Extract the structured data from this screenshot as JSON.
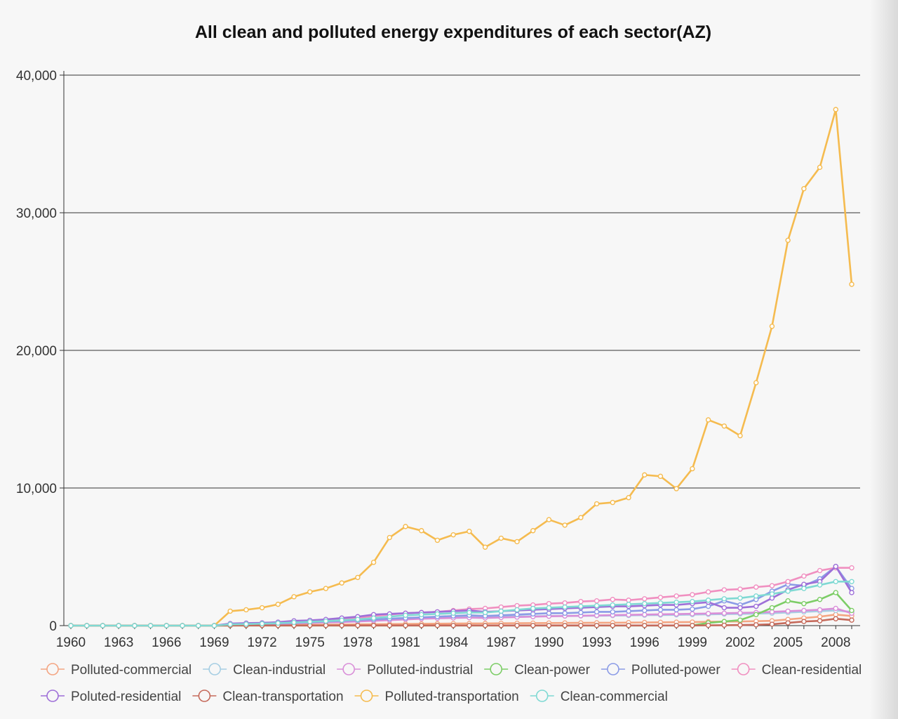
{
  "chart_data": {
    "type": "line",
    "title": "All clean and polluted energy expenditures of each sector(AZ)",
    "xlabel": "",
    "ylabel": "",
    "x": [
      1960,
      1961,
      1962,
      1963,
      1964,
      1965,
      1966,
      1967,
      1968,
      1969,
      1970,
      1971,
      1972,
      1973,
      1974,
      1975,
      1976,
      1977,
      1978,
      1979,
      1980,
      1981,
      1982,
      1983,
      1984,
      1985,
      1986,
      1987,
      1988,
      1989,
      1990,
      1991,
      1992,
      1993,
      1994,
      1995,
      1996,
      1997,
      1998,
      1999,
      2000,
      2001,
      2002,
      2003,
      2004,
      2005,
      2006,
      2007,
      2008,
      2009
    ],
    "x_tick_labels": [
      "1960",
      "1963",
      "1966",
      "1969",
      "1972",
      "1975",
      "1978",
      "1981",
      "1984",
      "1987",
      "1990",
      "1993",
      "1996",
      "1999",
      "2002",
      "2005",
      "2008"
    ],
    "ylim": [
      0,
      40000
    ],
    "y_ticks": [
      0,
      10000,
      20000,
      30000,
      40000
    ],
    "y_tick_labels": [
      "0",
      "10,000",
      "20,000",
      "30,000",
      "40,000"
    ],
    "grid": true,
    "legend_position": "bottom",
    "series": [
      {
        "name": "Polluted-commercial",
        "color": "#f4a582",
        "values": [
          0,
          0,
          0,
          0,
          0,
          0,
          0,
          0,
          0,
          0,
          30,
          35,
          40,
          45,
          55,
          60,
          70,
          80,
          90,
          100,
          110,
          120,
          130,
          140,
          150,
          155,
          160,
          170,
          175,
          180,
          190,
          195,
          200,
          205,
          210,
          220,
          230,
          240,
          250,
          260,
          280,
          290,
          300,
          320,
          350,
          450,
          550,
          650,
          800,
          700
        ]
      },
      {
        "name": "Clean-industrial",
        "color": "#a6cee3",
        "values": [
          0,
          0,
          0,
          0,
          0,
          0,
          0,
          0,
          0,
          0,
          80,
          100,
          120,
          150,
          200,
          250,
          300,
          350,
          400,
          450,
          500,
          550,
          580,
          600,
          620,
          640,
          620,
          640,
          660,
          680,
          700,
          700,
          710,
          720,
          730,
          740,
          760,
          770,
          780,
          800,
          820,
          840,
          850,
          870,
          900,
          950,
          1000,
          1050,
          1100,
          1000
        ]
      },
      {
        "name": "Polluted-industrial",
        "color": "#d98ed8",
        "values": [
          0,
          0,
          0,
          0,
          0,
          0,
          0,
          0,
          0,
          0,
          60,
          80,
          100,
          130,
          170,
          200,
          230,
          260,
          300,
          350,
          400,
          450,
          500,
          530,
          560,
          580,
          560,
          590,
          620,
          650,
          680,
          700,
          720,
          740,
          760,
          780,
          800,
          820,
          840,
          860,
          880,
          900,
          920,
          950,
          1000,
          1050,
          1100,
          1150,
          1250,
          900
        ]
      },
      {
        "name": "Clean-power",
        "color": "#7ccd66",
        "values": [
          0,
          0,
          0,
          0,
          0,
          0,
          0,
          0,
          0,
          0,
          10,
          10,
          10,
          10,
          10,
          10,
          10,
          10,
          10,
          10,
          10,
          10,
          10,
          10,
          10,
          10,
          10,
          10,
          10,
          10,
          10,
          10,
          10,
          10,
          10,
          10,
          10,
          10,
          10,
          10,
          200,
          300,
          400,
          800,
          1300,
          1800,
          1600,
          1900,
          2400,
          1100
        ]
      },
      {
        "name": "Polluted-power",
        "color": "#8b9be6",
        "values": [
          0,
          0,
          0,
          0,
          0,
          0,
          0,
          0,
          0,
          0,
          100,
          120,
          140,
          170,
          200,
          250,
          300,
          350,
          400,
          450,
          500,
          550,
          600,
          650,
          700,
          750,
          700,
          750,
          800,
          850,
          900,
          900,
          950,
          1000,
          1000,
          1050,
          1100,
          1150,
          1150,
          1200,
          1400,
          1800,
          1500,
          1900,
          2500,
          3000,
          2900,
          3400,
          4300,
          2700
        ]
      },
      {
        "name": "Clean-residential",
        "color": "#f08fc0",
        "values": [
          0,
          0,
          0,
          0,
          0,
          0,
          0,
          0,
          0,
          0,
          100,
          120,
          150,
          200,
          260,
          320,
          400,
          480,
          560,
          700,
          800,
          900,
          950,
          1000,
          1100,
          1200,
          1250,
          1350,
          1450,
          1500,
          1600,
          1650,
          1750,
          1800,
          1900,
          1850,
          1950,
          2050,
          2150,
          2250,
          2450,
          2600,
          2650,
          2800,
          2900,
          3200,
          3600,
          4000,
          4200,
          4200
        ]
      },
      {
        "name": "Poluted-residential",
        "color": "#9e6fd8",
        "values": [
          0,
          0,
          0,
          0,
          0,
          0,
          0,
          0,
          0,
          0,
          150,
          180,
          200,
          250,
          350,
          380,
          450,
          550,
          650,
          800,
          850,
          900,
          950,
          1000,
          1050,
          1100,
          1000,
          1050,
          1100,
          1150,
          1200,
          1250,
          1300,
          1350,
          1400,
          1400,
          1450,
          1500,
          1500,
          1600,
          1700,
          1300,
          1300,
          1400,
          2000,
          2600,
          3000,
          3200,
          4300,
          2400
        ]
      },
      {
        "name": "Clean-transportation",
        "color": "#c56a5b",
        "values": [
          0,
          0,
          0,
          0,
          0,
          0,
          0,
          0,
          0,
          0,
          10,
          10,
          10,
          10,
          10,
          10,
          10,
          10,
          10,
          10,
          10,
          10,
          10,
          10,
          10,
          10,
          10,
          10,
          10,
          10,
          10,
          10,
          10,
          10,
          10,
          10,
          10,
          10,
          10,
          10,
          20,
          30,
          40,
          60,
          100,
          200,
          300,
          350,
          500,
          400
        ]
      },
      {
        "name": "Polluted-transportation",
        "color": "#f5bb4f",
        "values": [
          0,
          0,
          0,
          0,
          0,
          0,
          0,
          0,
          0,
          0,
          1050,
          1150,
          1300,
          1550,
          2100,
          2450,
          2700,
          3100,
          3500,
          4600,
          6400,
          7200,
          6900,
          6200,
          6600,
          6850,
          5700,
          6350,
          6100,
          6900,
          7700,
          7300,
          7850,
          8850,
          8950,
          9300,
          10950,
          10850,
          9950,
          11400,
          14950,
          14500,
          13800,
          17650,
          21750,
          28000,
          31750,
          33300,
          37500,
          24800
        ]
      },
      {
        "name": "Clean-commercial",
        "color": "#7fd9d3",
        "values": [
          0,
          0,
          0,
          0,
          0,
          0,
          0,
          0,
          0,
          0,
          90,
          110,
          140,
          180,
          230,
          280,
          330,
          390,
          450,
          550,
          650,
          750,
          800,
          850,
          900,
          950,
          950,
          1050,
          1150,
          1250,
          1300,
          1350,
          1400,
          1450,
          1500,
          1550,
          1600,
          1650,
          1700,
          1750,
          1850,
          1950,
          2000,
          2150,
          2300,
          2500,
          2700,
          2950,
          3200,
          3200
        ]
      }
    ]
  }
}
